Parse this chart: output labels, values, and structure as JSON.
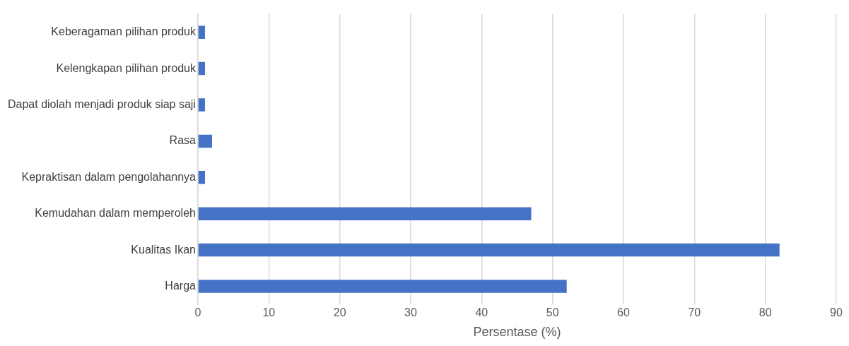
{
  "chart_data": {
    "type": "bar",
    "orientation": "horizontal",
    "xlabel": "Persentase (%)",
    "categories": [
      "Keberagaman pilihan produk",
      "Kelengkapan pilihan produk",
      "Dapat diolah menjadi produk siap saji",
      "Rasa",
      "Kepraktisan dalam pengolahannya",
      "Kemudahan dalam memperoleh",
      "Kualitas Ikan",
      "Harga"
    ],
    "values": [
      1,
      1,
      1,
      2,
      1,
      47,
      82,
      52
    ],
    "color": "#4472c4",
    "xlim": [
      0,
      90
    ],
    "xticks": [
      0,
      10,
      20,
      30,
      40,
      50,
      60,
      70,
      80,
      90
    ],
    "grid": "x",
    "legend": false
  }
}
